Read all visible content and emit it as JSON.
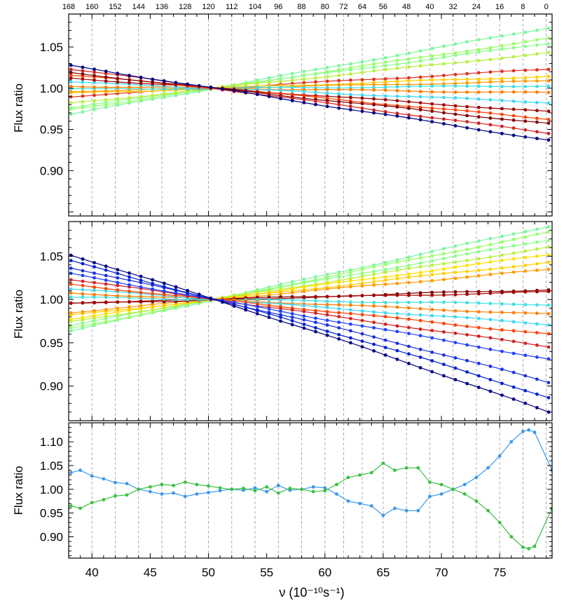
{
  "figure": {
    "xlabel": "ν (10⁻¹⁰s⁻¹)",
    "x_axis": {
      "range": [
        38.0,
        79.5
      ],
      "tick_labels": [
        "40",
        "45",
        "50",
        "55",
        "60",
        "65",
        "70",
        "75"
      ]
    },
    "top_axis": {
      "labels": [
        "168",
        "160",
        "152",
        "144",
        "136",
        "128",
        "120",
        "112",
        "104",
        "96",
        "88",
        "80",
        "72",
        "64",
        "56",
        "48",
        "40",
        "32",
        "24",
        "16",
        "8",
        "0"
      ]
    },
    "top_axis_positions": [
      38.0,
      40.0,
      42.0,
      44.0,
      46.0,
      48.0,
      50.0,
      52.0,
      54.0,
      56.0,
      58.0,
      60.0,
      61.6,
      63.2,
      65.0,
      67.0,
      69.0,
      71.0,
      73.0,
      75.0,
      77.0,
      79.0
    ]
  },
  "chart_data": [
    {
      "type": "line",
      "panel": "top",
      "ylabel": "Flux ratio",
      "ylim": [
        0.845,
        1.09
      ],
      "yticks": [
        "0.90",
        "0.95",
        "1.00",
        "1.05"
      ],
      "ytick_values": [
        0.9,
        0.95,
        1.0,
        1.05
      ],
      "pivot_x": 50.5,
      "series": [
        {
          "name": "s1",
          "color": "#7cf5a0",
          "slope": 0.00256
        },
        {
          "name": "s2",
          "color": "#99ff66",
          "slope": 0.0021
        },
        {
          "name": "s3",
          "color": "#88ff88",
          "slope": 0.0019
        },
        {
          "name": "s4",
          "color": "#b8f040",
          "slope": 0.0015
        },
        {
          "name": "s5",
          "color": "#e03020",
          "slope": 0.0008
        },
        {
          "name": "s6",
          "color": "#ffd000",
          "slope": 0.0005
        },
        {
          "name": "s7",
          "color": "#ff9a00",
          "slope": 0.0003
        },
        {
          "name": "s8",
          "color": "#40e0e0",
          "slope": 0.0001
        },
        {
          "name": "s9",
          "color": "#ff7f00",
          "slope": -0.0002
        },
        {
          "name": "s10",
          "color": "#40d8f0",
          "slope": -0.0006
        },
        {
          "name": "s11",
          "color": "#a00000",
          "slope": -0.001
        },
        {
          "name": "s12",
          "color": "#ff4000",
          "slope": -0.0013
        },
        {
          "name": "s13",
          "color": "#800000",
          "slope": -0.0015
        },
        {
          "name": "s14",
          "color": "#d02020",
          "slope": -0.0019
        },
        {
          "name": "s15",
          "color": "#000080",
          "slope": -0.0022
        }
      ]
    },
    {
      "type": "line",
      "panel": "middle",
      "ylabel": "Flux ratio",
      "ylim": [
        0.86,
        1.09
      ],
      "yticks": [
        "0.90",
        "0.95",
        "1.00",
        "1.05"
      ],
      "ytick_values": [
        0.9,
        0.95,
        1.0,
        1.05
      ],
      "pivot_x": 50.5,
      "series": [
        {
          "name": "m1",
          "color": "#7cf5a0",
          "slope": 0.00295
        },
        {
          "name": "m2",
          "color": "#99ff66",
          "slope": 0.0027
        },
        {
          "name": "m3",
          "color": "#88ff88",
          "slope": 0.0024
        },
        {
          "name": "m4",
          "color": "#b8f040",
          "slope": 0.0021
        },
        {
          "name": "m5",
          "color": "#ffe000",
          "slope": 0.0018
        },
        {
          "name": "m6",
          "color": "#ffd000",
          "slope": 0.0015
        },
        {
          "name": "m7",
          "color": "#ff9a00",
          "slope": 0.0012
        },
        {
          "name": "m8",
          "color": "#800000",
          "slope": 0.0004
        },
        {
          "name": "m9",
          "color": "#a00000",
          "slope": 0.0003
        },
        {
          "name": "m10",
          "color": "#40e0e0",
          "slope": -0.0002
        },
        {
          "name": "m11",
          "color": "#ff7f00",
          "slope": -0.0006
        },
        {
          "name": "m12",
          "color": "#40d8f0",
          "slope": -0.001
        },
        {
          "name": "m13",
          "color": "#ff4000",
          "slope": -0.0014
        },
        {
          "name": "m14",
          "color": "#d02020",
          "slope": -0.0019
        },
        {
          "name": "m15",
          "color": "#2040ff",
          "slope": -0.0024
        },
        {
          "name": "m16",
          "color": "#1a30e0",
          "slope": -0.003
        },
        {
          "name": "m17",
          "color": "#0020d0",
          "slope": -0.0036
        },
        {
          "name": "m18",
          "color": "#000080",
          "slope": -0.0042
        }
      ]
    },
    {
      "type": "line",
      "panel": "bottom",
      "ylabel": "Flux ratio",
      "ylim": [
        0.855,
        1.14
      ],
      "yticks": [
        "0.90",
        "0.95",
        "1.00",
        "1.05",
        "1.10"
      ],
      "ytick_values": [
        0.9,
        0.95,
        1.0,
        1.05,
        1.1
      ],
      "series": [
        {
          "name": "blue",
          "color": "#3a98e8",
          "x": [
            38.2,
            39.0,
            40.0,
            41.0,
            42.0,
            43.0,
            44.0,
            45.0,
            46.0,
            47.0,
            48.0,
            49.0,
            50.0,
            51.0,
            52.0,
            53.0,
            54.0,
            55.0,
            56.0,
            57.0,
            58.0,
            59.0,
            60.0,
            61.0,
            62.0,
            63.0,
            64.0,
            65.0,
            66.0,
            67.0,
            68.0,
            69.0,
            70.0,
            71.0,
            72.0,
            73.0,
            74.0,
            75.0,
            76.0,
            77.0,
            77.5,
            78.0,
            79.5
          ],
          "y": [
            1.035,
            1.04,
            1.028,
            1.022,
            1.014,
            1.012,
            1.0,
            0.995,
            0.99,
            0.992,
            0.985,
            0.99,
            0.993,
            0.997,
            1.0,
            0.998,
            1.003,
            0.995,
            1.008,
            0.998,
            1.0,
            1.005,
            1.003,
            0.99,
            0.975,
            0.97,
            0.965,
            0.945,
            0.96,
            0.955,
            0.955,
            0.985,
            0.99,
            1.0,
            1.01,
            1.025,
            1.045,
            1.07,
            1.1,
            1.122,
            1.125,
            1.12,
            1.04
          ]
        },
        {
          "name": "green",
          "color": "#3ac040",
          "x": [
            38.2,
            39.0,
            40.0,
            41.0,
            42.0,
            43.0,
            44.0,
            45.0,
            46.0,
            47.0,
            48.0,
            49.0,
            50.0,
            51.0,
            52.0,
            53.0,
            54.0,
            55.0,
            56.0,
            57.0,
            58.0,
            59.0,
            60.0,
            61.0,
            62.0,
            63.0,
            64.0,
            65.0,
            66.0,
            67.0,
            68.0,
            69.0,
            70.0,
            71.0,
            72.0,
            73.0,
            74.0,
            75.0,
            76.0,
            77.0,
            77.5,
            78.0,
            79.5
          ],
          "y": [
            0.965,
            0.96,
            0.972,
            0.978,
            0.986,
            0.988,
            1.0,
            1.005,
            1.01,
            1.008,
            1.015,
            1.01,
            1.007,
            1.003,
            1.0,
            1.002,
            0.997,
            1.005,
            0.992,
            1.002,
            1.0,
            0.995,
            0.997,
            1.01,
            1.025,
            1.03,
            1.035,
            1.055,
            1.04,
            1.045,
            1.045,
            1.015,
            1.01,
            1.0,
            0.99,
            0.975,
            0.955,
            0.93,
            0.9,
            0.878,
            0.875,
            0.88,
            0.96
          ]
        }
      ]
    }
  ]
}
